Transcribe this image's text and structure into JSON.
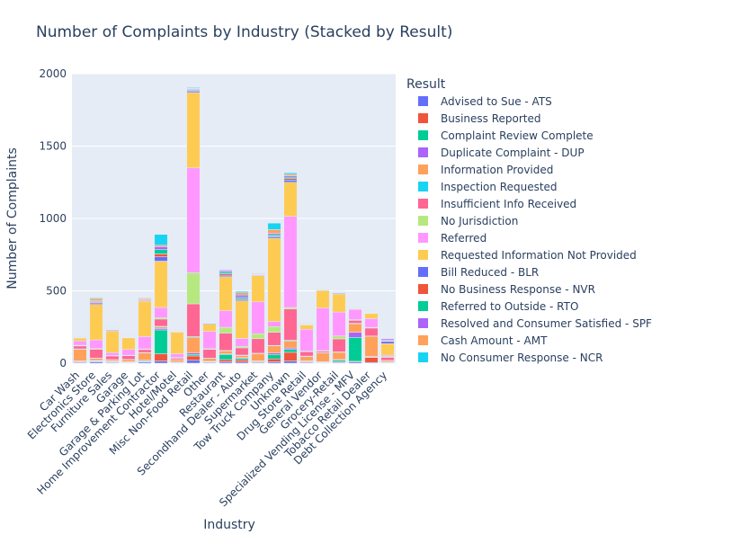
{
  "chart_data": {
    "type": "bar",
    "stacked": true,
    "title": "Number of Complaints by Industry (Stacked by Result)",
    "xlabel": "Industry",
    "ylabel": "Number of Complaints",
    "ylim": [
      0,
      2000
    ],
    "yticks": [
      0,
      500,
      1000,
      1500,
      2000
    ],
    "grid": true,
    "legend_title": "Result",
    "legend_position": "right",
    "categories": [
      "Car Wash",
      "Electronics Store",
      "Furniture Sales",
      "Garage",
      "Garage & Parking Lot",
      "Home Improvement Contractor",
      "Hotel/Motel",
      "Misc Non-Food Retail",
      "Other",
      "Restaurant",
      "Secondhand Dealer - Auto",
      "Supermarket",
      "Tow Truck Company",
      "Unknown",
      "Drug Store Retail",
      "General Vendor",
      "Grocery-Retail",
      "Specialized Vending License - MFV",
      "Tobacco Retail Dealer",
      "Debt Collection Agency"
    ],
    "series": [
      {
        "name": "Advised to Sue - ATS",
        "color": "#636efa",
        "values": [
          5,
          10,
          5,
          3,
          8,
          15,
          2,
          20,
          5,
          10,
          8,
          5,
          10,
          15,
          5,
          3,
          5,
          8,
          5,
          2
        ]
      },
      {
        "name": "Business Reported",
        "color": "#EF553B",
        "values": [
          5,
          3,
          3,
          3,
          3,
          50,
          2,
          30,
          3,
          15,
          15,
          5,
          20,
          60,
          5,
          3,
          5,
          5,
          35,
          2
        ]
      },
      {
        "name": "Complaint Review Complete",
        "color": "#00cc96",
        "values": [
          3,
          3,
          2,
          2,
          5,
          165,
          2,
          10,
          2,
          35,
          10,
          3,
          30,
          20,
          3,
          2,
          10,
          165,
          3,
          2
        ]
      },
      {
        "name": "Duplicate Complaint - DUP",
        "color": "#ab63fa",
        "values": [
          3,
          3,
          3,
          2,
          5,
          10,
          2,
          10,
          3,
          5,
          5,
          3,
          10,
          10,
          3,
          2,
          5,
          35,
          3,
          2
        ]
      },
      {
        "name": "Information Provided",
        "color": "#FFA15A",
        "values": [
          80,
          15,
          10,
          15,
          50,
          10,
          15,
          110,
          20,
          20,
          15,
          50,
          50,
          50,
          30,
          60,
          50,
          60,
          140,
          10
        ]
      },
      {
        "name": "Inspection Requested",
        "color": "#19d3f3",
        "values": [
          3,
          2,
          2,
          2,
          3,
          5,
          2,
          5,
          2,
          3,
          3,
          3,
          3,
          5,
          3,
          2,
          3,
          3,
          2,
          2
        ]
      },
      {
        "name": "Insufficient Info Received",
        "color": "#FF6692",
        "values": [
          20,
          60,
          25,
          25,
          20,
          50,
          10,
          225,
          60,
          120,
          50,
          100,
          90,
          215,
          30,
          10,
          90,
          20,
          55,
          20
        ]
      },
      {
        "name": "No Jurisdiction",
        "color": "#B6E880",
        "values": [
          5,
          5,
          3,
          3,
          5,
          10,
          5,
          215,
          5,
          40,
          10,
          35,
          40,
          10,
          5,
          5,
          20,
          5,
          5,
          5
        ]
      },
      {
        "name": "Referred",
        "color": "#FF97FF",
        "values": [
          30,
          60,
          20,
          40,
          85,
          70,
          25,
          725,
          120,
          115,
          55,
          220,
          35,
          630,
          150,
          295,
          165,
          70,
          60,
          10
        ]
      },
      {
        "name": "Requested Information Not Provided",
        "color": "#FECB52",
        "values": [
          20,
          245,
          150,
          80,
          245,
          320,
          150,
          520,
          50,
          235,
          260,
          180,
          575,
          235,
          30,
          120,
          125,
          5,
          35,
          80
        ]
      },
      {
        "name": "Bill Reduced - BLR",
        "color": "#636efa",
        "values": [
          3,
          10,
          5,
          3,
          5,
          30,
          3,
          10,
          5,
          10,
          10,
          5,
          10,
          15,
          3,
          2,
          5,
          3,
          3,
          15
        ]
      },
      {
        "name": "No Business Response - NVR",
        "color": "#EF553B",
        "values": [
          3,
          5,
          3,
          3,
          5,
          20,
          3,
          5,
          3,
          10,
          5,
          3,
          5,
          10,
          3,
          2,
          3,
          3,
          3,
          5
        ]
      },
      {
        "name": "Referred to Outside - RTO",
        "color": "#00cc96",
        "values": [
          3,
          5,
          3,
          3,
          3,
          30,
          3,
          5,
          3,
          10,
          10,
          3,
          10,
          10,
          3,
          2,
          3,
          3,
          3,
          3
        ]
      },
      {
        "name": "Resolved and Consumer Satisfied - SPF",
        "color": "#ab63fa",
        "values": [
          3,
          5,
          3,
          3,
          5,
          20,
          3,
          5,
          3,
          10,
          15,
          3,
          10,
          10,
          3,
          2,
          3,
          3,
          3,
          10
        ]
      },
      {
        "name": "Cash Amount - AMT",
        "color": "#FFA15A",
        "values": [
          3,
          15,
          3,
          3,
          5,
          10,
          3,
          5,
          3,
          5,
          15,
          5,
          25,
          10,
          3,
          2,
          3,
          3,
          3,
          2
        ]
      },
      {
        "name": "No Consumer Response - NCR",
        "color": "#19d3f3",
        "values": [
          3,
          5,
          3,
          3,
          3,
          75,
          3,
          5,
          3,
          5,
          10,
          3,
          45,
          10,
          3,
          2,
          3,
          3,
          3,
          3
        ]
      }
    ]
  }
}
